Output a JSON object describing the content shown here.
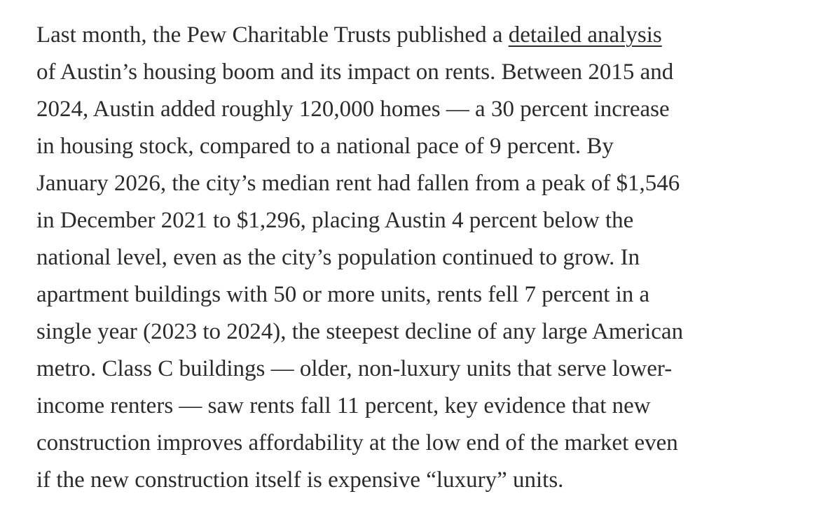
{
  "article": {
    "line_1_before": "Last month, the Pew Charitable Trusts published a ",
    "link_text": "detailed analysis",
    "lines": [
      "of Austin’s housing boom and its impact on rents. Between 2015 and",
      "2024, Austin added roughly 120,000 homes — a 30 percent increase",
      "in housing stock, compared to a national pace of 9 percent. By",
      "January 2026, the city’s median rent had fallen from a peak of $1,546",
      "in December 2021 to $1,296, placing Austin 4 percent below the",
      "national level, even as the city’s population continued to grow. In",
      "apartment buildings with 50 or more units, rents fell 7 percent in a",
      "single year (2023 to 2024), the steepest decline of any large American",
      "metro. Class C buildings — older, non-luxury units that serve lower-",
      "income renters — saw rents fall 11 percent, key evidence that new",
      "construction improves affordability at the low end of the market even",
      "if the new construction itself is expensive “luxury” units."
    ]
  }
}
